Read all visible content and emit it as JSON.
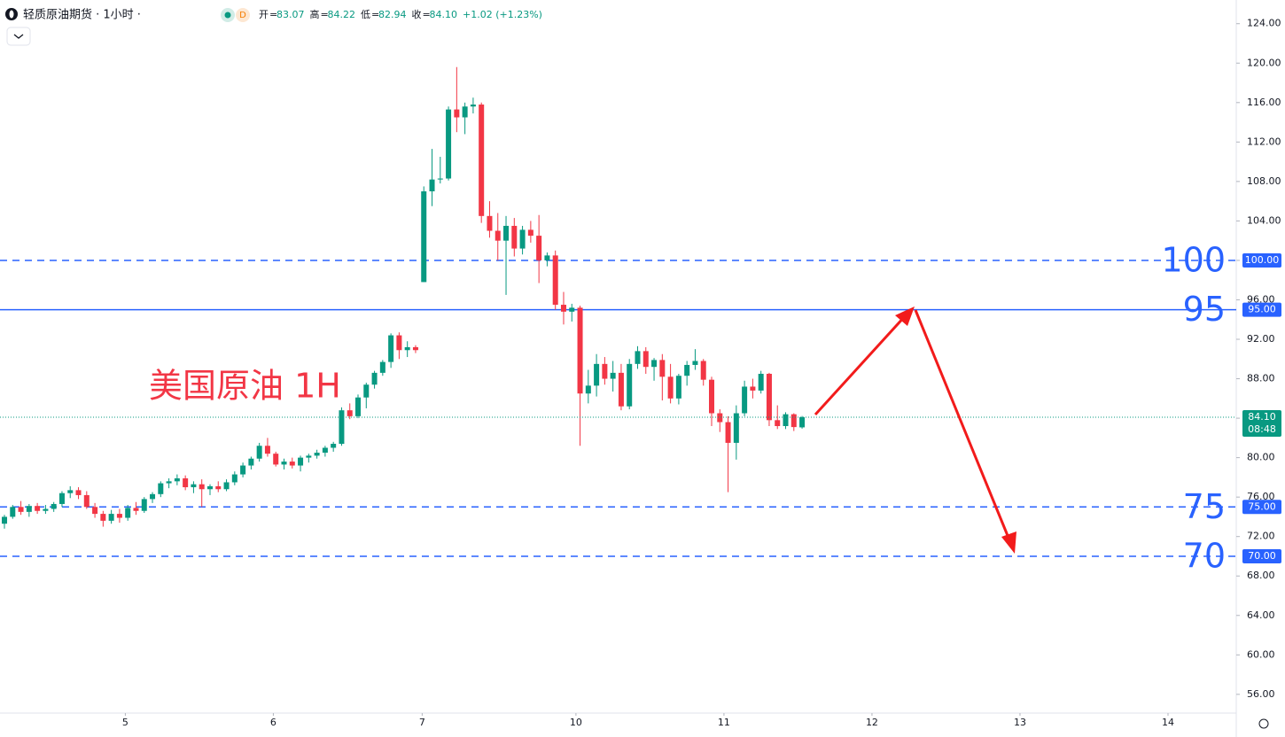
{
  "header": {
    "symbol": "轻质原油期货 · 1小时 ·",
    "badge": "D",
    "fields": [
      {
        "label": "开",
        "value": "83.07"
      },
      {
        "label": "高",
        "value": "84.22"
      },
      {
        "label": "低",
        "value": "82.94"
      },
      {
        "label": "收",
        "value": "84.10"
      }
    ],
    "change": "+1.02 (+1.23%)"
  },
  "chart_data": {
    "type": "candlestick",
    "annotation": "美国原油 1H",
    "up_color": "#089981",
    "down_color": "#f23645",
    "open": [
      73.3,
      74.0,
      75.0,
      74.5,
      75.1,
      74.6,
      74.8,
      75.3,
      76.4,
      76.7,
      76.2,
      75.0,
      74.3,
      73.6,
      74.3,
      73.9,
      74.9,
      74.6,
      75.8,
      76.3,
      77.4,
      77.6,
      77.9,
      77.0,
      77.3,
      76.8,
      77.1,
      76.8,
      77.5,
      78.3,
      79.2,
      79.9,
      81.2,
      80.4,
      79.3,
      79.6,
      79.2,
      80.0,
      80.2,
      80.5,
      81.0,
      81.4,
      84.8,
      84.2,
      86.1,
      87.4,
      88.6,
      89.7,
      92.4,
      90.9,
      91.2,
      97.8,
      107.0,
      108.2,
      108.3,
      115.3,
      114.5,
      115.6,
      115.8,
      104.5,
      103.0,
      102.0,
      103.5,
      101.2,
      103.1,
      102.5,
      100.0,
      100.5,
      95.5,
      94.8,
      95.2,
      86.5,
      87.3,
      89.5,
      88.0,
      88.6,
      85.2,
      89.5,
      90.8,
      89.2,
      89.9,
      88.2,
      86.0,
      88.3,
      89.4,
      89.8,
      87.9,
      84.5,
      83.6,
      81.5,
      84.5,
      87.2,
      86.8,
      88.5,
      83.8,
      83.2,
      84.4,
      83.07
    ],
    "high": [
      74.2,
      75.2,
      75.6,
      75.3,
      75.4,
      75.2,
      75.5,
      76.6,
      77.1,
      77.0,
      76.6,
      75.4,
      74.6,
      74.7,
      74.8,
      75.2,
      75.5,
      76.0,
      76.5,
      77.6,
      77.9,
      78.3,
      78.2,
      77.6,
      77.8,
      77.3,
      77.6,
      77.8,
      78.6,
      79.5,
      80.1,
      81.5,
      82.0,
      80.6,
      79.9,
      80.0,
      80.2,
      80.4,
      80.8,
      81.2,
      81.6,
      85.1,
      85.5,
      86.4,
      87.6,
      88.8,
      89.9,
      92.6,
      92.7,
      91.8,
      91.4,
      107.5,
      111.3,
      110.5,
      115.6,
      119.6,
      116.0,
      116.5,
      116.0,
      106.0,
      104.8,
      104.5,
      104.3,
      103.5,
      104.0,
      104.6,
      100.8,
      101.0,
      96.8,
      95.6,
      95.4,
      88.9,
      90.5,
      90.2,
      89.8,
      89.5,
      90.0,
      91.3,
      91.2,
      90.1,
      90.5,
      89.5,
      88.5,
      89.8,
      91.0,
      90.0,
      88.2,
      84.9,
      84.2,
      85.3,
      87.8,
      88.0,
      88.8,
      88.6,
      85.3,
      84.6,
      84.5,
      84.22
    ],
    "low": [
      72.8,
      73.8,
      74.2,
      74.0,
      74.3,
      74.3,
      74.5,
      75.0,
      75.9,
      75.8,
      74.8,
      73.9,
      73.0,
      73.3,
      73.4,
      73.6,
      74.2,
      74.4,
      75.4,
      76.0,
      76.9,
      77.2,
      76.7,
      76.4,
      75.0,
      76.2,
      76.5,
      76.6,
      77.2,
      78.0,
      78.8,
      79.6,
      80.1,
      79.1,
      78.8,
      78.9,
      78.6,
      79.5,
      79.9,
      80.1,
      80.6,
      81.2,
      83.9,
      84.0,
      85.0,
      87.0,
      88.3,
      89.1,
      90.0,
      90.2,
      90.6,
      97.8,
      105.5,
      107.8,
      108.1,
      113.0,
      112.8,
      114.9,
      103.8,
      102.3,
      100.0,
      96.5,
      100.4,
      100.6,
      101.8,
      97.7,
      99.4,
      95.0,
      93.5,
      93.8,
      81.2,
      85.5,
      86.2,
      87.4,
      86.7,
      84.8,
      84.9,
      89.0,
      88.5,
      87.8,
      85.8,
      85.5,
      85.4,
      87.3,
      88.9,
      87.3,
      83.2,
      82.6,
      76.5,
      79.8,
      84.2,
      86.0,
      86.5,
      83.2,
      82.9,
      82.9,
      82.7,
      82.94
    ],
    "close": [
      74.0,
      75.0,
      74.5,
      75.1,
      74.6,
      74.8,
      75.3,
      76.4,
      76.7,
      76.2,
      75.0,
      74.3,
      73.6,
      74.3,
      73.9,
      74.9,
      74.6,
      75.8,
      76.3,
      77.4,
      77.6,
      77.9,
      77.0,
      77.3,
      76.8,
      77.1,
      76.8,
      77.5,
      78.3,
      79.2,
      79.9,
      81.2,
      80.4,
      79.3,
      79.6,
      79.2,
      80.0,
      80.2,
      80.5,
      81.0,
      81.4,
      84.8,
      84.2,
      86.1,
      87.4,
      88.6,
      89.7,
      92.4,
      90.9,
      91.2,
      90.9,
      107.0,
      108.2,
      108.3,
      115.3,
      114.5,
      115.6,
      115.8,
      104.5,
      103.0,
      102.0,
      103.5,
      101.2,
      103.1,
      102.5,
      100.0,
      100.5,
      95.5,
      94.8,
      95.2,
      86.5,
      87.3,
      89.5,
      88.0,
      88.6,
      85.2,
      89.5,
      90.8,
      89.2,
      89.9,
      88.2,
      86.0,
      88.3,
      89.4,
      89.8,
      87.9,
      84.5,
      83.6,
      81.5,
      84.5,
      87.2,
      86.8,
      88.5,
      83.8,
      83.2,
      84.4,
      83.1,
      84.1
    ],
    "xlim": [
      -0.54,
      149.8
    ],
    "xticks": [
      {
        "value": 14.7,
        "label": "5"
      },
      {
        "value": 32.7,
        "label": "6"
      },
      {
        "value": 50.8,
        "label": "7"
      },
      {
        "value": 69.5,
        "label": "10"
      },
      {
        "value": 87.5,
        "label": "11"
      },
      {
        "value": 105.5,
        "label": "12"
      },
      {
        "value": 123.5,
        "label": "13"
      },
      {
        "value": 141.5,
        "label": "14"
      }
    ],
    "ylim": [
      54.1,
      126.4
    ],
    "yticks": [
      {
        "value": 56,
        "label": "56.00"
      },
      {
        "value": 60,
        "label": "60.00"
      },
      {
        "value": 64,
        "label": "64.00"
      },
      {
        "value": 68,
        "label": "68.00"
      },
      {
        "value": 72,
        "label": "72.00"
      },
      {
        "value": 76,
        "label": "76.00"
      },
      {
        "value": 80,
        "label": "80.00"
      },
      {
        "value": 84,
        "label": "84.00"
      },
      {
        "value": 88,
        "label": "88.00"
      },
      {
        "value": 92,
        "label": "92.00"
      },
      {
        "value": 96,
        "label": "96.00"
      },
      {
        "value": 100,
        "label": "100.00"
      },
      {
        "value": 104,
        "label": "104.00"
      },
      {
        "value": 108,
        "label": "108.00"
      },
      {
        "value": 112,
        "label": "112.00"
      },
      {
        "value": 116,
        "label": "116.00"
      },
      {
        "value": 120,
        "label": "120.00"
      },
      {
        "value": 124,
        "label": "124.00"
      }
    ],
    "level_color": "#2962ff",
    "levels": [
      {
        "value": 100,
        "label": "100",
        "axis_label": "100.00",
        "style": "dashed"
      },
      {
        "value": 95,
        "label": "95",
        "axis_label": "95.00",
        "style": "solid"
      },
      {
        "value": 75,
        "label": "75",
        "axis_label": "75.00",
        "style": "dashed"
      },
      {
        "value": 70,
        "label": "70",
        "axis_label": "70.00",
        "style": "dashed"
      }
    ],
    "last": {
      "value": 84.1,
      "label": "84.10",
      "countdown": "08:48"
    }
  }
}
